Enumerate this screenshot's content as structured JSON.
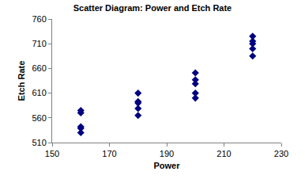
{
  "chart_data": {
    "type": "scatter",
    "title": "Scatter Diagram: Power and Etch Rate",
    "x_label": "Power",
    "y_label": "Etch Rate",
    "x": [
      160,
      160,
      160,
      160,
      160,
      180,
      180,
      180,
      180,
      180,
      200,
      200,
      200,
      200,
      200,
      220,
      220,
      220,
      220,
      220
    ],
    "values": [
      575,
      542,
      530,
      539,
      570,
      565,
      593,
      590,
      579,
      610,
      600,
      651,
      610,
      637,
      629,
      725,
      700,
      715,
      685,
      710
    ],
    "color": "#000080",
    "marker": "diamond",
    "xlim": [
      150,
      230
    ],
    "xticks": [
      150,
      170,
      190,
      210,
      230
    ],
    "ylim": [
      510,
      760
    ],
    "yticks": [
      510,
      560,
      610,
      660,
      710,
      760
    ],
    "grid": false
  }
}
